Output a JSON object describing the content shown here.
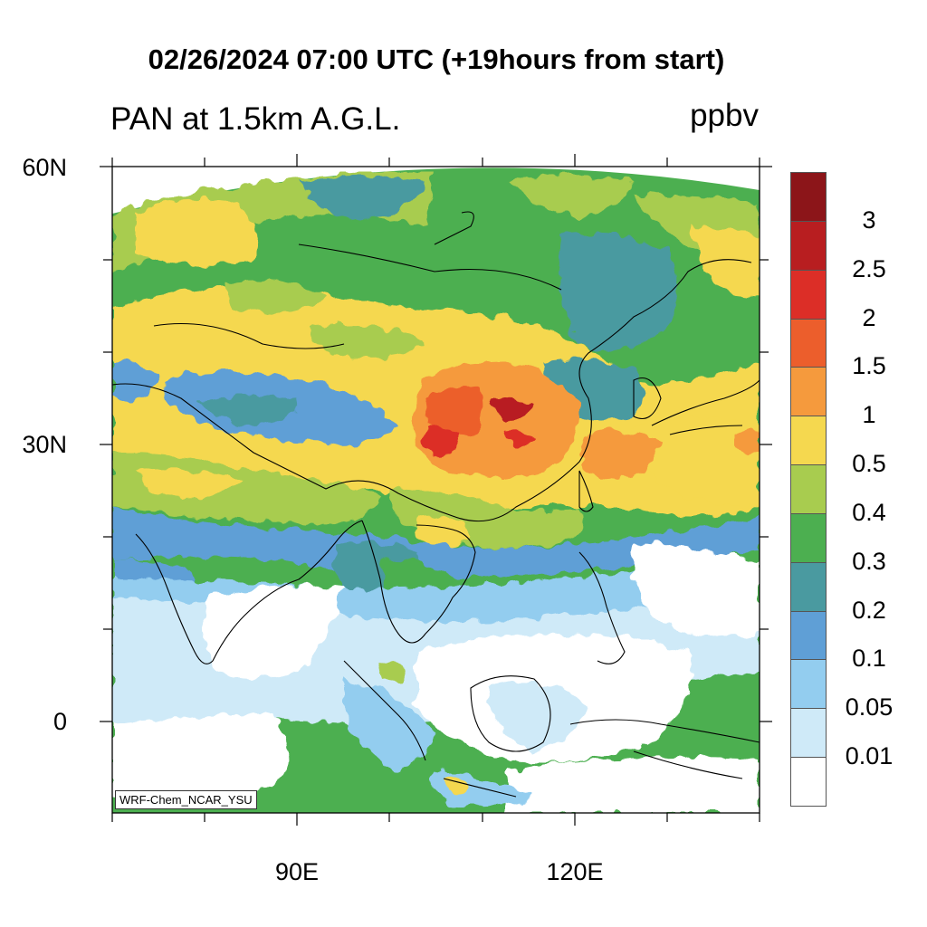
{
  "title": "02/26/2024 07:00 UTC (+19hours from start)",
  "subtitle": "PAN at 1.5km A.G.L.",
  "units": "ppbv",
  "credit": "WRF-Chem_NCAR_YSU",
  "axes": {
    "lat_labels": [
      "60N",
      "30N",
      "0"
    ],
    "lon_labels": [
      "90E",
      "120E"
    ]
  },
  "colorbar": {
    "levels": [
      "0.01",
      "0.05",
      "0.1",
      "0.2",
      "0.3",
      "0.4",
      "0.5",
      "1",
      "1.5",
      "2",
      "2.5",
      "3"
    ],
    "colors": [
      "#ffffff",
      "#cfeaf8",
      "#93cdef",
      "#5f9fd6",
      "#4a9aa0",
      "#4caf50",
      "#a8cc4f",
      "#f5d84f",
      "#f59a3d",
      "#ec5e2c",
      "#dc2e27",
      "#b81e20",
      "#8c1519"
    ]
  },
  "colors": {
    "frame": "#000000",
    "coast": "#000000"
  }
}
